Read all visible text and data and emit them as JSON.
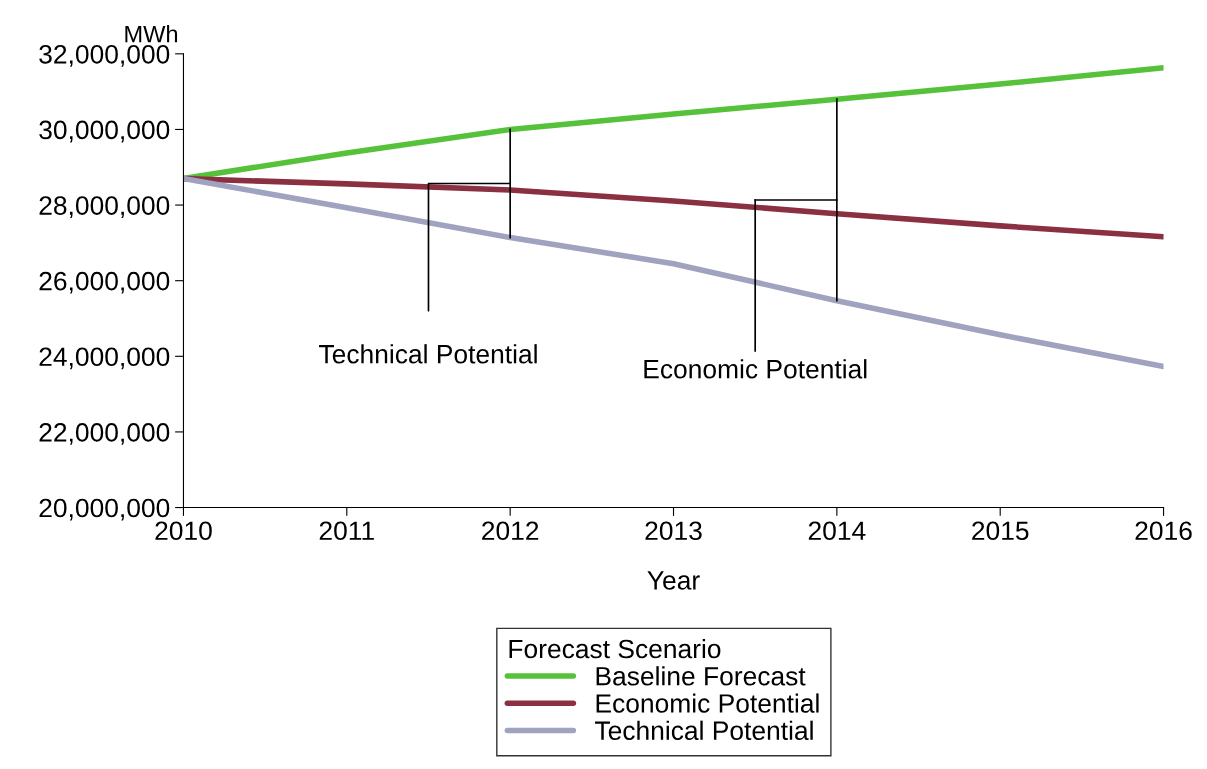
{
  "chart_data": {
    "type": "line",
    "xlabel": "Year",
    "ylabel": "MWh",
    "legend_title": "Forecast Scenario",
    "legend": "bottom",
    "grid": false,
    "marker": "none",
    "line_style": "solid",
    "x": [
      2010,
      2011,
      2012,
      2013,
      2014,
      2015,
      2016
    ],
    "series": [
      {
        "name": "Baseline Forecast",
        "color": "#55c23a",
        "values": [
          28700000,
          29380000,
          30000000,
          30410000,
          30800000,
          31200000,
          31630000
        ]
      },
      {
        "name": "Economic Potential",
        "color": "#8b3040",
        "values": [
          28700000,
          28560000,
          28400000,
          28110000,
          27770000,
          27450000,
          27160000
        ]
      },
      {
        "name": "Technical Potential",
        "color": "#a0a3bf",
        "values": [
          28700000,
          27930000,
          27140000,
          26450000,
          25470000,
          24570000,
          23730000
        ]
      }
    ],
    "xlim": [
      2010,
      2016
    ],
    "xticks": [
      2010,
      2011,
      2012,
      2013,
      2014,
      2015,
      2016
    ],
    "ylim": [
      20000000,
      32000000
    ],
    "yticks": [
      {
        "value": 20000000,
        "label": "20,000,000"
      },
      {
        "value": 22000000,
        "label": "22,000,000"
      },
      {
        "value": 24000000,
        "label": "24,000,000"
      },
      {
        "value": 26000000,
        "label": "26,000,000"
      },
      {
        "value": 28000000,
        "label": "28,000,000"
      },
      {
        "value": 30000000,
        "label": "30,000,000"
      },
      {
        "value": 32000000,
        "label": "32,000,000"
      }
    ],
    "annotations": [
      {
        "text": "Technical Potential",
        "x": 2012,
        "y": 28570000
      },
      "Economic Potential"
    ]
  }
}
